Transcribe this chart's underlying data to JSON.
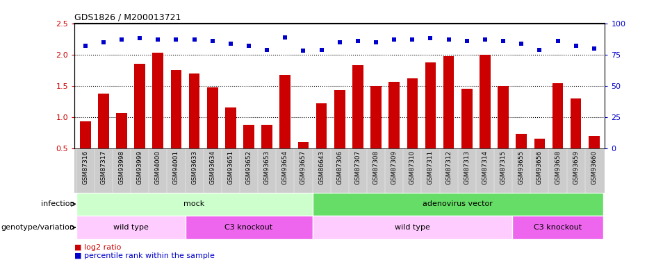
{
  "title": "GDS1826 / M200013721",
  "samples": [
    "GSM87316",
    "GSM87317",
    "GSM93998",
    "GSM93999",
    "GSM94000",
    "GSM94001",
    "GSM93633",
    "GSM93634",
    "GSM93651",
    "GSM93652",
    "GSM93653",
    "GSM93654",
    "GSM93657",
    "GSM86643",
    "GSM87306",
    "GSM87307",
    "GSM87308",
    "GSM87309",
    "GSM87310",
    "GSM87311",
    "GSM87312",
    "GSM87313",
    "GSM87314",
    "GSM87315",
    "GSM93655",
    "GSM93656",
    "GSM93658",
    "GSM93659",
    "GSM93660"
  ],
  "log2_ratio": [
    0.93,
    1.38,
    1.06,
    1.85,
    2.03,
    1.75,
    1.7,
    1.47,
    1.15,
    0.87,
    0.88,
    1.67,
    0.6,
    1.22,
    1.43,
    1.83,
    1.5,
    1.56,
    1.62,
    1.87,
    1.97,
    1.45,
    2.0,
    1.5,
    0.73,
    0.65,
    1.54,
    1.3,
    0.7
  ],
  "percentile_rank": [
    82,
    85,
    87,
    88,
    87,
    87,
    87,
    86,
    84,
    82,
    79,
    89,
    78,
    79,
    85,
    86,
    85,
    87,
    87,
    88,
    87,
    86,
    87,
    86,
    84,
    79,
    86,
    82,
    80
  ],
  "bar_color": "#cc0000",
  "dot_color": "#0000cc",
  "ylim_left": [
    0.5,
    2.5
  ],
  "ylim_right": [
    0,
    100
  ],
  "yticks_left": [
    0.5,
    1.0,
    1.5,
    2.0,
    2.5
  ],
  "yticks_right": [
    0,
    25,
    50,
    75,
    100
  ],
  "grid_values": [
    1.0,
    1.5,
    2.0
  ],
  "infection_row": [
    {
      "label": "mock",
      "start": 0,
      "end": 12,
      "color": "#ccffcc"
    },
    {
      "label": "adenovirus vector",
      "start": 13,
      "end": 28,
      "color": "#66dd66"
    }
  ],
  "genotype_row": [
    {
      "label": "wild type",
      "start": 0,
      "end": 5,
      "color": "#ffccff"
    },
    {
      "label": "C3 knockout",
      "start": 6,
      "end": 12,
      "color": "#ee66ee"
    },
    {
      "label": "wild type",
      "start": 13,
      "end": 23,
      "color": "#ffccff"
    },
    {
      "label": "C3 knockout",
      "start": 24,
      "end": 28,
      "color": "#ee66ee"
    }
  ],
  "row_label_infection": "infection",
  "row_label_genotype": "genotype/variation",
  "legend_bar_label": "log2 ratio",
  "legend_dot_label": "percentile rank within the sample",
  "plot_bg": "#ffffff",
  "tick_area_bg": "#cccccc"
}
